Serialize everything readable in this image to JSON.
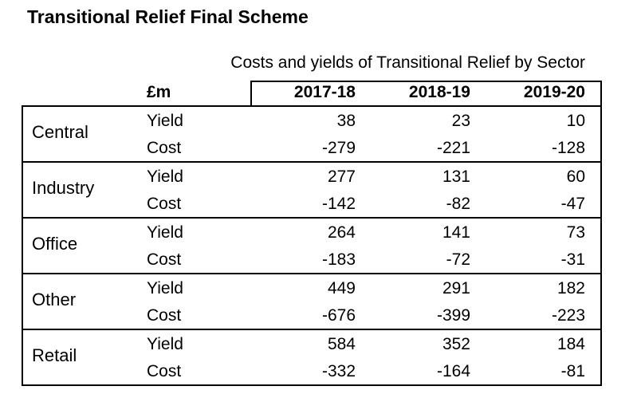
{
  "title": "Transitional Relief Final Scheme",
  "table": {
    "caption": "Costs and yields of Transitional Relief by Sector",
    "units_label": "£m",
    "years": [
      "2017-18",
      "2018-19",
      "2019-20"
    ],
    "sectors": [
      {
        "name": "Central",
        "rows": [
          {
            "metric": "Yield",
            "values": [
              "38",
              "23",
              "10"
            ]
          },
          {
            "metric": "Cost",
            "values": [
              "-279",
              "-221",
              "-128"
            ]
          }
        ]
      },
      {
        "name": "Industry",
        "rows": [
          {
            "metric": "Yield",
            "values": [
              "277",
              "131",
              "60"
            ]
          },
          {
            "metric": "Cost",
            "values": [
              "-142",
              "-82",
              "-47"
            ]
          }
        ]
      },
      {
        "name": "Office",
        "rows": [
          {
            "metric": "Yield",
            "values": [
              "264",
              "141",
              "73"
            ]
          },
          {
            "metric": "Cost",
            "values": [
              "-183",
              "-72",
              "-31"
            ]
          }
        ]
      },
      {
        "name": "Other",
        "rows": [
          {
            "metric": "Yield",
            "values": [
              "449",
              "291",
              "182"
            ]
          },
          {
            "metric": "Cost",
            "values": [
              "-676",
              "-399",
              "-223"
            ]
          }
        ]
      },
      {
        "name": "Retail",
        "rows": [
          {
            "metric": "Yield",
            "values": [
              "584",
              "352",
              "184"
            ]
          },
          {
            "metric": "Cost",
            "values": [
              "-332",
              "-164",
              "-81"
            ]
          }
        ]
      }
    ]
  }
}
